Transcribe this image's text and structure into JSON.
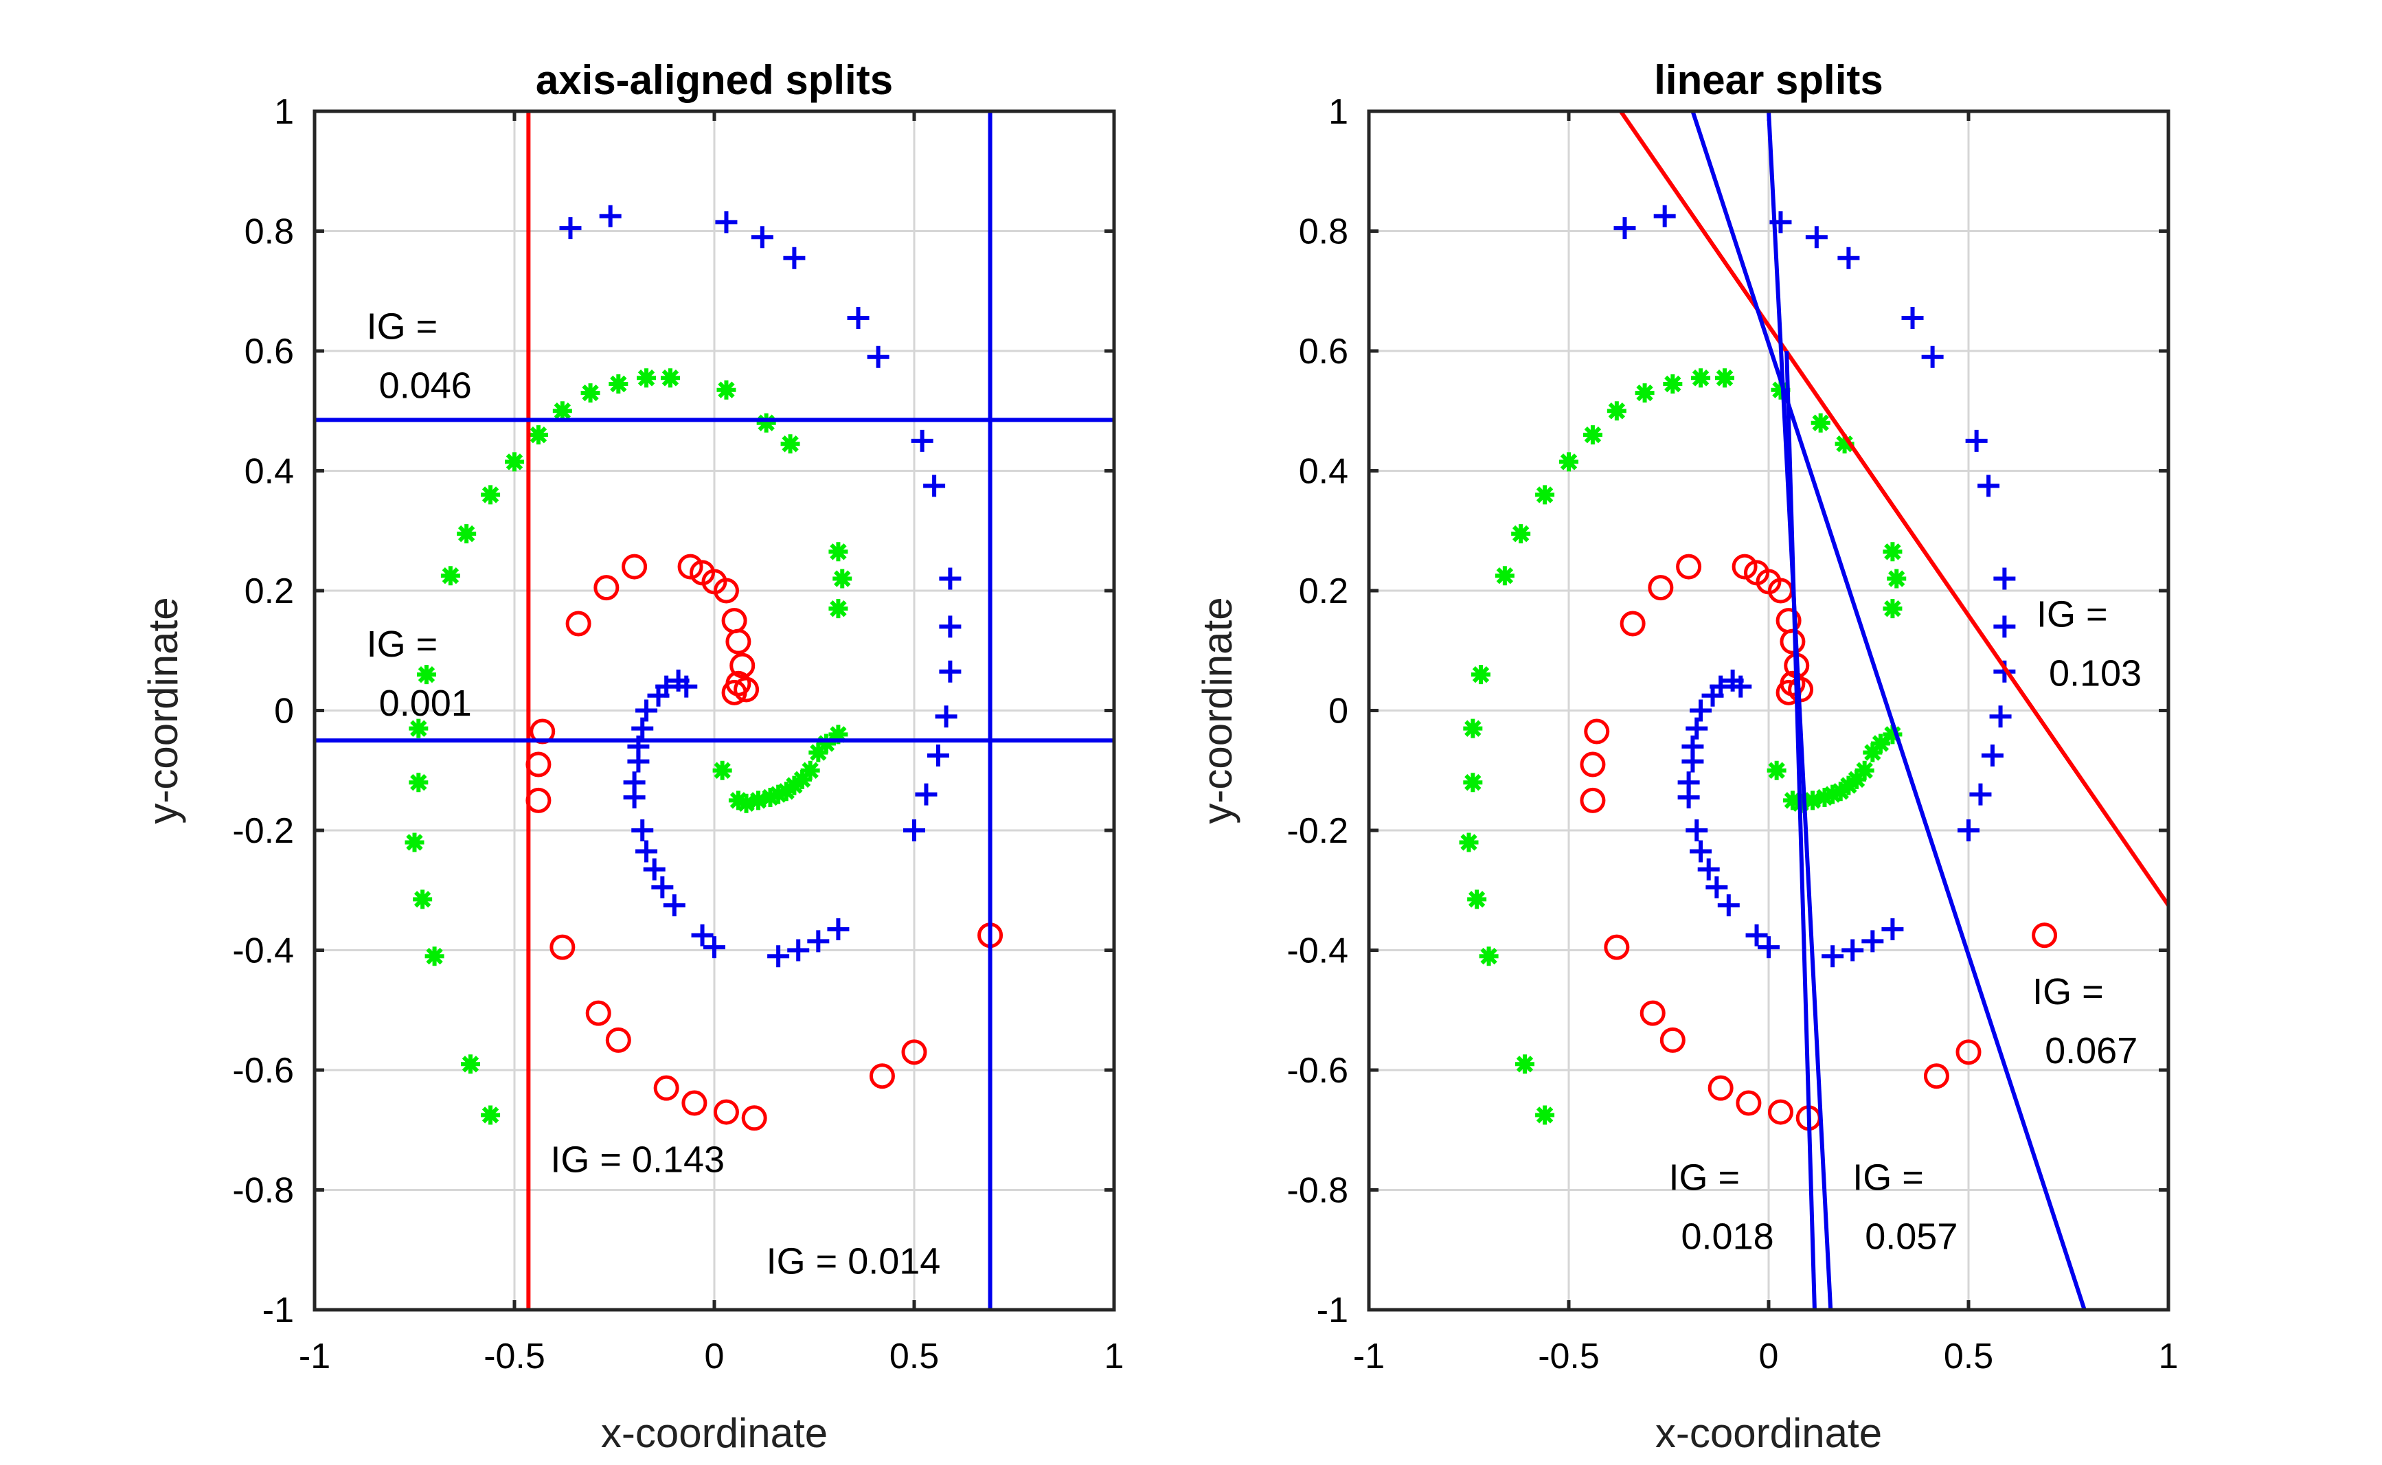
{
  "colors": {
    "red": "#ff0000",
    "green": "#00ee00",
    "blue": "#0000ee"
  },
  "chart_data": [
    {
      "type": "scatter",
      "title": "axis-aligned splits",
      "xlabel": "x-coordinate",
      "ylabel": "y-coordinate",
      "xlim": [
        -1,
        1
      ],
      "ylim": [
        -1,
        1
      ],
      "xticks": [
        -1,
        -0.5,
        0,
        0.5,
        1
      ],
      "xtick_labels": [
        "-1",
        "-0.5",
        "0",
        "0.5",
        "1"
      ],
      "yticks": [
        1,
        0.8,
        0.6,
        0.4,
        0.2,
        0,
        -0.2,
        -0.4,
        -0.6,
        -0.8,
        -1
      ],
      "ytick_labels": [
        "1",
        "0.8",
        "0.6",
        "0.4",
        "0.2",
        "0",
        "-0.2",
        "-0.4",
        "-0.6",
        "-0.8",
        "-1"
      ],
      "grid": true,
      "splits": [
        {
          "kind": "vertical",
          "x": -0.465,
          "color": "red"
        },
        {
          "kind": "vertical",
          "x": 0.69,
          "color": "blue"
        },
        {
          "kind": "horizontal",
          "y": 0.485,
          "color": "blue"
        },
        {
          "kind": "horizontal",
          "y": -0.05,
          "color": "blue"
        }
      ],
      "annotations": [
        {
          "lines": [
            "IG =",
            "0.046"
          ],
          "x": -0.87,
          "y": 0.62,
          "anchor": "start"
        },
        {
          "lines": [
            "IG =",
            "0.001"
          ],
          "x": -0.87,
          "y": 0.09,
          "anchor": "start"
        },
        {
          "lines": [
            "IG = 0.143"
          ],
          "x": -0.41,
          "y": -0.77,
          "anchor": "start"
        },
        {
          "lines": [
            "IG = 0.014"
          ],
          "x": 0.13,
          "y": -0.94,
          "anchor": "start"
        }
      ]
    },
    {
      "type": "scatter",
      "title": "linear splits",
      "xlabel": "x-coordinate",
      "ylabel": "y-coordinate",
      "xlim": [
        -1,
        1
      ],
      "ylim": [
        -1,
        1
      ],
      "xticks": [
        -1,
        -0.5,
        0,
        0.5,
        1
      ],
      "xtick_labels": [
        "-1",
        "-0.5",
        "0",
        "0.5",
        "1"
      ],
      "yticks": [
        1,
        0.8,
        0.6,
        0.4,
        0.2,
        0,
        -0.2,
        -0.4,
        -0.6,
        -0.8,
        -1
      ],
      "ytick_labels": [
        "1",
        "0.8",
        "0.6",
        "0.4",
        "0.2",
        "0",
        "-0.2",
        "-0.4",
        "-0.6",
        "-0.8",
        "-1"
      ],
      "grid": true,
      "splits": [
        {
          "kind": "line",
          "x1": -0.37,
          "y1": 1.0,
          "x2": 1.0,
          "y2": -0.325,
          "color": "red"
        },
        {
          "kind": "line",
          "x1": -0.19,
          "y1": 1.0,
          "x2": 0.79,
          "y2": -1.0,
          "color": "blue"
        },
        {
          "kind": "line",
          "x1": 0.0,
          "y1": 1.0,
          "x2": 0.155,
          "y2": -1.0,
          "color": "blue"
        },
        {
          "kind": "line",
          "x1": 0.045,
          "y1": 0.6,
          "x2": 0.115,
          "y2": -1.0,
          "color": "blue"
        }
      ],
      "annotations": [
        {
          "lines": [
            "IG =",
            "0.103"
          ],
          "x": 0.67,
          "y": 0.14,
          "anchor": "start"
        },
        {
          "lines": [
            "IG =",
            "0.067"
          ],
          "x": 0.66,
          "y": -0.49,
          "anchor": "start"
        },
        {
          "lines": [
            "IG =",
            "0.018"
          ],
          "x": -0.25,
          "y": -0.8,
          "anchor": "start"
        },
        {
          "lines": [
            "IG =",
            "0.057"
          ],
          "x": 0.21,
          "y": -0.8,
          "anchor": "start"
        }
      ]
    }
  ],
  "point_series": [
    {
      "name": "",
      "marker": "plus",
      "color": "blue",
      "points": [
        [
          -0.36,
          0.805
        ],
        [
          -0.26,
          0.825
        ],
        [
          0.03,
          0.815
        ],
        [
          0.12,
          0.79
        ],
        [
          0.2,
          0.755
        ],
        [
          0.36,
          0.655
        ],
        [
          0.41,
          0.59
        ],
        [
          0.52,
          0.45
        ],
        [
          0.55,
          0.375
        ],
        [
          0.59,
          0.22
        ],
        [
          0.59,
          0.14
        ],
        [
          0.59,
          0.065
        ],
        [
          0.58,
          -0.01
        ],
        [
          0.56,
          -0.075
        ],
        [
          0.53,
          -0.14
        ],
        [
          0.5,
          -0.2
        ],
        [
          0.31,
          -0.365
        ],
        [
          0.26,
          -0.385
        ],
        [
          0.21,
          -0.4
        ],
        [
          0.16,
          -0.41
        ],
        [
          0.0,
          -0.395
        ],
        [
          -0.03,
          -0.375
        ],
        [
          -0.1,
          -0.325
        ],
        [
          -0.13,
          -0.295
        ],
        [
          -0.15,
          -0.265
        ],
        [
          -0.17,
          -0.235
        ],
        [
          -0.18,
          -0.2
        ],
        [
          -0.2,
          -0.145
        ],
        [
          -0.2,
          -0.12
        ],
        [
          -0.19,
          -0.085
        ],
        [
          -0.19,
          -0.06
        ],
        [
          -0.18,
          -0.03
        ],
        [
          -0.17,
          0.0
        ],
        [
          -0.14,
          0.025
        ],
        [
          -0.12,
          0.04
        ],
        [
          -0.09,
          0.05
        ],
        [
          -0.07,
          0.04
        ]
      ]
    },
    {
      "name": "",
      "marker": "star",
      "color": "green",
      "points": [
        [
          -0.38,
          0.5
        ],
        [
          -0.31,
          0.53
        ],
        [
          -0.24,
          0.545
        ],
        [
          -0.17,
          0.555
        ],
        [
          -0.11,
          0.555
        ],
        [
          0.03,
          0.535
        ],
        [
          0.13,
          0.48
        ],
        [
          0.19,
          0.445
        ],
        [
          -0.44,
          0.46
        ],
        [
          -0.5,
          0.415
        ],
        [
          -0.56,
          0.36
        ],
        [
          -0.62,
          0.295
        ],
        [
          -0.66,
          0.225
        ],
        [
          -0.72,
          0.06
        ],
        [
          -0.74,
          -0.03
        ],
        [
          -0.74,
          -0.12
        ],
        [
          -0.75,
          -0.22
        ],
        [
          -0.73,
          -0.315
        ],
        [
          -0.7,
          -0.41
        ],
        [
          -0.61,
          -0.59
        ],
        [
          -0.56,
          -0.675
        ],
        [
          0.31,
          0.265
        ],
        [
          0.32,
          0.22
        ],
        [
          0.31,
          0.17
        ],
        [
          0.31,
          -0.04
        ],
        [
          0.28,
          -0.055
        ],
        [
          0.26,
          -0.07
        ],
        [
          0.24,
          -0.1
        ],
        [
          0.22,
          -0.115
        ],
        [
          0.2,
          -0.125
        ],
        [
          0.18,
          -0.135
        ],
        [
          0.16,
          -0.14
        ],
        [
          0.14,
          -0.145
        ],
        [
          0.11,
          -0.15
        ],
        [
          0.08,
          -0.155
        ],
        [
          0.06,
          -0.15
        ],
        [
          0.02,
          -0.1
        ]
      ]
    },
    {
      "name": "",
      "marker": "circle",
      "color": "red",
      "points": [
        [
          -0.34,
          0.145
        ],
        [
          -0.27,
          0.205
        ],
        [
          -0.2,
          0.24
        ],
        [
          -0.06,
          0.24
        ],
        [
          -0.03,
          0.23
        ],
        [
          0.0,
          0.215
        ],
        [
          0.03,
          0.2
        ],
        [
          0.05,
          0.15
        ],
        [
          0.06,
          0.115
        ],
        [
          0.07,
          0.075
        ],
        [
          0.08,
          0.035
        ],
        [
          0.06,
          0.045
        ],
        [
          0.05,
          0.03
        ],
        [
          -0.43,
          -0.035
        ],
        [
          -0.44,
          -0.09
        ],
        [
          -0.44,
          -0.15
        ],
        [
          -0.38,
          -0.395
        ],
        [
          -0.29,
          -0.505
        ],
        [
          -0.24,
          -0.55
        ],
        [
          -0.12,
          -0.63
        ],
        [
          -0.05,
          -0.655
        ],
        [
          0.03,
          -0.67
        ],
        [
          0.1,
          -0.68
        ],
        [
          0.42,
          -0.61
        ],
        [
          0.5,
          -0.57
        ],
        [
          0.69,
          -0.375
        ]
      ]
    }
  ]
}
